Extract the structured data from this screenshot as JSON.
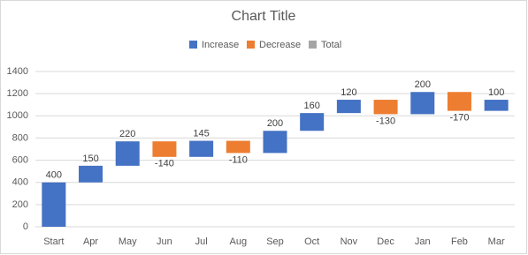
{
  "chart_data": {
    "type": "waterfall",
    "title": "Chart Title",
    "categories": [
      "Start",
      "Apr",
      "May",
      "Jun",
      "Jul",
      "Aug",
      "Sep",
      "Oct",
      "Nov",
      "Dec",
      "Jan",
      "Feb",
      "Mar"
    ],
    "values": [
      400,
      150,
      220,
      -140,
      145,
      -110,
      200,
      160,
      120,
      -130,
      200,
      -170,
      100
    ],
    "legend": [
      {
        "name": "Increase",
        "color": "#4472c4"
      },
      {
        "name": "Decrease",
        "color": "#ed7d31"
      },
      {
        "name": "Total",
        "color": "#a5a5a5"
      }
    ],
    "ylim": [
      0,
      1400
    ],
    "yticks": [
      0,
      200,
      400,
      600,
      800,
      1000,
      1200,
      1400
    ],
    "grid": true
  }
}
